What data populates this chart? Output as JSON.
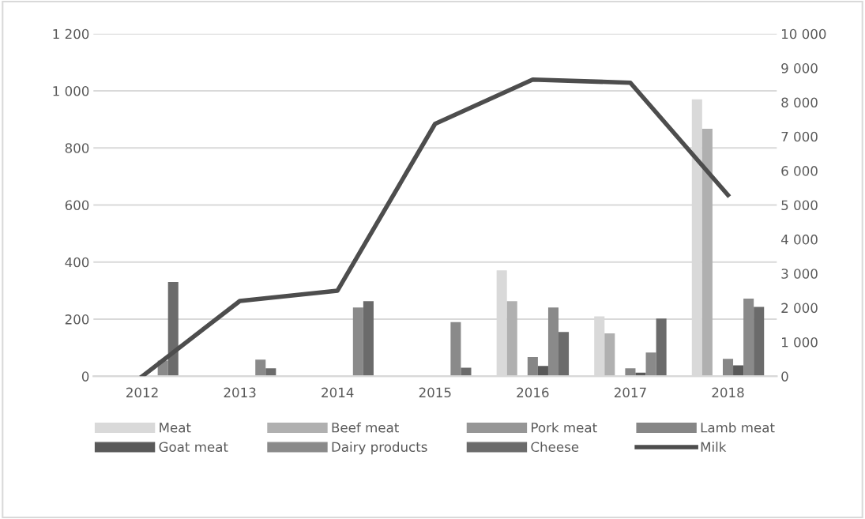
{
  "chart_data": {
    "type": "bar",
    "categories": [
      "2012",
      "2013",
      "2014",
      "2015",
      "2016",
      "2017",
      "2018"
    ],
    "series": [
      {
        "name": "Meat",
        "color": "#d9d9d9",
        "values": [
          null,
          null,
          null,
          null,
          371,
          210,
          970
        ]
      },
      {
        "name": "Beef meat",
        "color": "#b0b0b0",
        "values": [
          null,
          null,
          null,
          null,
          263,
          150,
          867
        ]
      },
      {
        "name": "Pork meat",
        "color": "#969696",
        "values": [
          null,
          null,
          null,
          null,
          null,
          null,
          null
        ]
      },
      {
        "name": "Lamb meat",
        "color": "#868686",
        "values": [
          null,
          null,
          null,
          null,
          67,
          28,
          61
        ]
      },
      {
        "name": "Goat meat",
        "color": "#595959",
        "values": [
          null,
          null,
          null,
          null,
          36,
          13,
          38
        ]
      },
      {
        "name": "Dairy products",
        "color": "#8a8a8a",
        "values": [
          55,
          58,
          241,
          190,
          241,
          83,
          272
        ]
      },
      {
        "name": "Cheese",
        "color": "#6b6b6b",
        "values": [
          330,
          28,
          263,
          30,
          155,
          202,
          243
        ]
      },
      {
        "name": "Milk",
        "type": "line",
        "axis": "y2",
        "color": "#4d4d4d",
        "values": [
          0,
          2200,
          2500,
          7370,
          8660,
          8570,
          5290
        ]
      }
    ],
    "ylim": [
      0,
      1200
    ],
    "yticks": [
      0,
      {
        "value": 200,
        "label": "200"
      },
      {
        "value": 400,
        "label": "400"
      },
      {
        "value": 600,
        "label": "600"
      },
      {
        "value": 800,
        "label": "800"
      },
      {
        "value": 1000,
        "label": "1 000"
      },
      {
        "value": 1200,
        "label": "1 200"
      }
    ],
    "y2lim": [
      0,
      10000
    ],
    "y2ticks": [
      0,
      {
        "value": 1000,
        "label": "1 000"
      },
      {
        "value": 2000,
        "label": "2 000"
      },
      {
        "value": 3000,
        "label": "3 000"
      },
      {
        "value": 4000,
        "label": "4 000"
      },
      {
        "value": 5000,
        "label": "5 000"
      },
      {
        "value": 6000,
        "label": "6 000"
      },
      {
        "value": 7000,
        "label": "7 000"
      },
      {
        "value": 8000,
        "label": "8 000"
      },
      {
        "value": 9000,
        "label": "9 000"
      },
      {
        "value": 10000,
        "label": "10 000"
      }
    ],
    "grid": "y",
    "legend": "bottom"
  }
}
